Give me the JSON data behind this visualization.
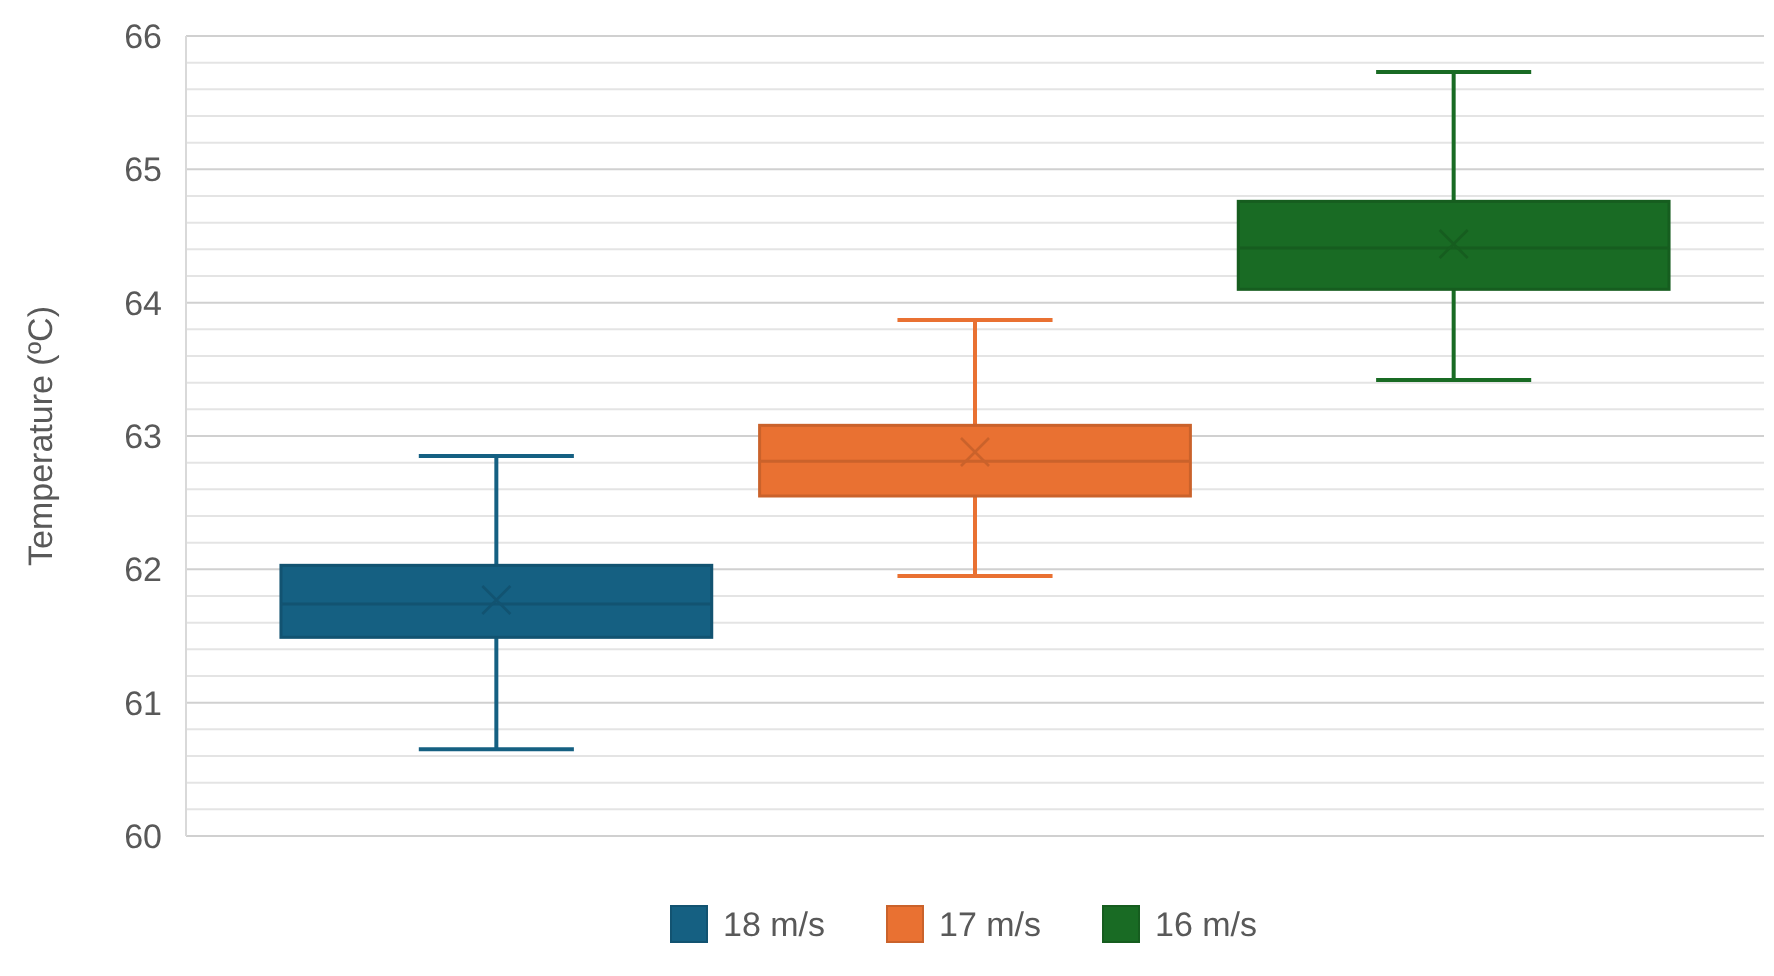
{
  "chart_data": {
    "type": "box",
    "ylabel": "Temperature (ºC)",
    "categories": [
      null
    ],
    "series": [
      {
        "name": "18 m/s",
        "color": "#156082",
        "boxes": [
          {
            "low": 60.65,
            "q1": 61.49,
            "median": 61.74,
            "q3": 62.03,
            "high": 62.85,
            "mean": 61.77
          }
        ]
      },
      {
        "name": "17 m/s",
        "color": "#e97132",
        "boxes": [
          {
            "low": 61.95,
            "q1": 62.55,
            "median": 62.81,
            "q3": 63.08,
            "high": 63.87,
            "mean": 62.88
          }
        ]
      },
      {
        "name": "16 m/s",
        "color": "#196b24",
        "boxes": [
          {
            "low": 63.42,
            "q1": 64.1,
            "median": 64.41,
            "q3": 64.76,
            "high": 65.73,
            "mean": 64.44
          }
        ]
      }
    ],
    "ylim": [
      60,
      66
    ],
    "yticks": [
      60,
      {
        "value": 60.2,
        "label": null
      },
      {
        "value": 60.4,
        "label": null
      },
      {
        "value": 60.6,
        "label": null
      },
      {
        "value": 60.8,
        "label": null
      },
      61,
      {
        "value": 61.2,
        "label": null
      },
      {
        "value": 61.4,
        "label": null
      },
      {
        "value": 61.6,
        "label": null
      },
      {
        "value": 61.8,
        "label": null
      },
      62,
      {
        "value": 62.2,
        "label": null
      },
      {
        "value": 62.4,
        "label": null
      },
      {
        "value": 62.6,
        "label": null
      },
      {
        "value": 62.8,
        "label": null
      },
      63,
      {
        "value": 63.2,
        "label": null
      },
      {
        "value": 63.4,
        "label": null
      },
      {
        "value": 63.6,
        "label": null
      },
      {
        "value": 63.8,
        "label": null
      },
      64,
      {
        "value": 64.2,
        "label": null
      },
      {
        "value": 64.4,
        "label": null
      },
      {
        "value": 64.6,
        "label": null
      },
      {
        "value": 64.8,
        "label": null
      },
      65,
      {
        "value": 65.2,
        "label": null
      },
      {
        "value": 65.4,
        "label": null
      },
      {
        "value": 65.6,
        "label": null
      },
      {
        "value": 65.8,
        "label": null
      },
      66
    ],
    "grid": true,
    "legend": "bottom",
    "marker": "cross"
  }
}
